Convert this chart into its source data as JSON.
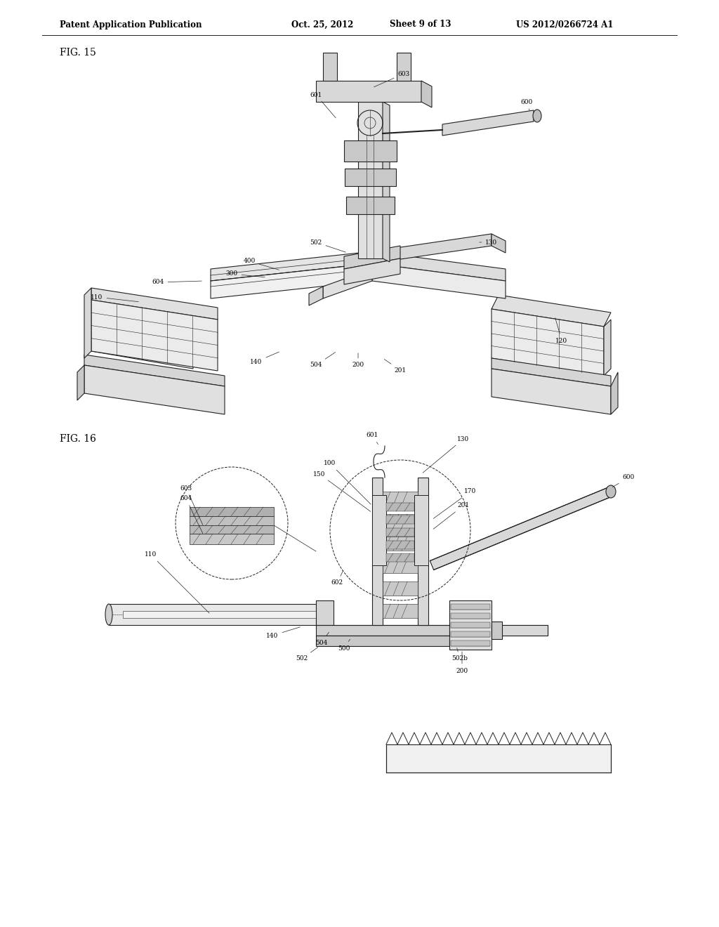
{
  "bg_color": "#ffffff",
  "line_color": "#222222",
  "header_text": "Patent Application Publication",
  "header_date": "Oct. 25, 2012",
  "header_sheet": "Sheet 9 of 13",
  "header_patent": "US 2012/0266724 A1",
  "fig15_label": "FIG. 15",
  "fig16_label": "FIG. 16",
  "header_fontsize": 8.5,
  "fig_label_fontsize": 10,
  "label_fontsize": 6.5
}
